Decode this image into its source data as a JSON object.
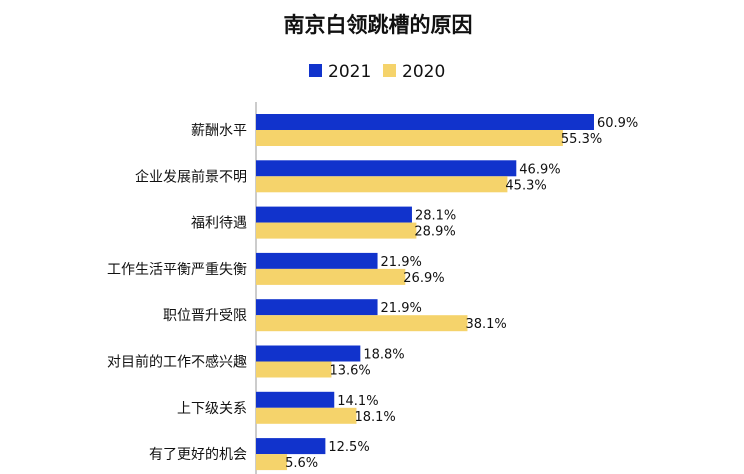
{
  "chart_data": {
    "type": "bar",
    "orientation": "horizontal",
    "title": "南京白领跳槽的原因",
    "legend_position": "top",
    "grid": false,
    "xlim": [
      0,
      70
    ],
    "categories": [
      "薪酬水平",
      "企业发展前景不明",
      "福利待遇",
      "工作生活平衡严重失衡",
      "职位晋升受限",
      "对目前的工作不感兴趣",
      "上下级关系",
      "有了更好的机会"
    ],
    "series": [
      {
        "name": "2021",
        "color": "#1133cc",
        "values": [
          60.9,
          46.9,
          28.1,
          21.9,
          21.9,
          18.8,
          14.1,
          12.5
        ],
        "labels": [
          "60.9%",
          "46.9%",
          "28.1%",
          "21.9%",
          "21.9%",
          "18.8%",
          "14.1%",
          "12.5%"
        ]
      },
      {
        "name": "2020",
        "color": "#f5d36b",
        "values": [
          55.3,
          45.3,
          28.9,
          26.9,
          38.1,
          13.6,
          18.1,
          5.6
        ],
        "labels": [
          "55.3%",
          "45.3%",
          "28.9%",
          "26.9%",
          "38.1%",
          "13.6%",
          "18.1%",
          "5.6%"
        ]
      }
    ]
  }
}
